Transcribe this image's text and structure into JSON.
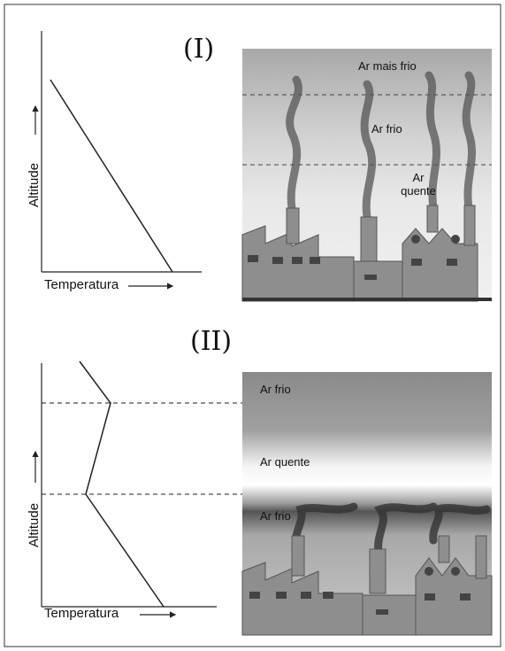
{
  "panels": [
    {
      "label": "(I)",
      "graph": {
        "y_label": "Altitude",
        "x_label": "Temperatura"
      },
      "layers": [
        "Ar mais frio",
        "Ar frio",
        "Ar quente"
      ]
    },
    {
      "label": "(II)",
      "graph": {
        "y_label": "Altitude",
        "x_label": "Temperatura"
      },
      "layers": [
        "Ar frio",
        "Ar quente",
        "Ar frio"
      ]
    }
  ]
}
